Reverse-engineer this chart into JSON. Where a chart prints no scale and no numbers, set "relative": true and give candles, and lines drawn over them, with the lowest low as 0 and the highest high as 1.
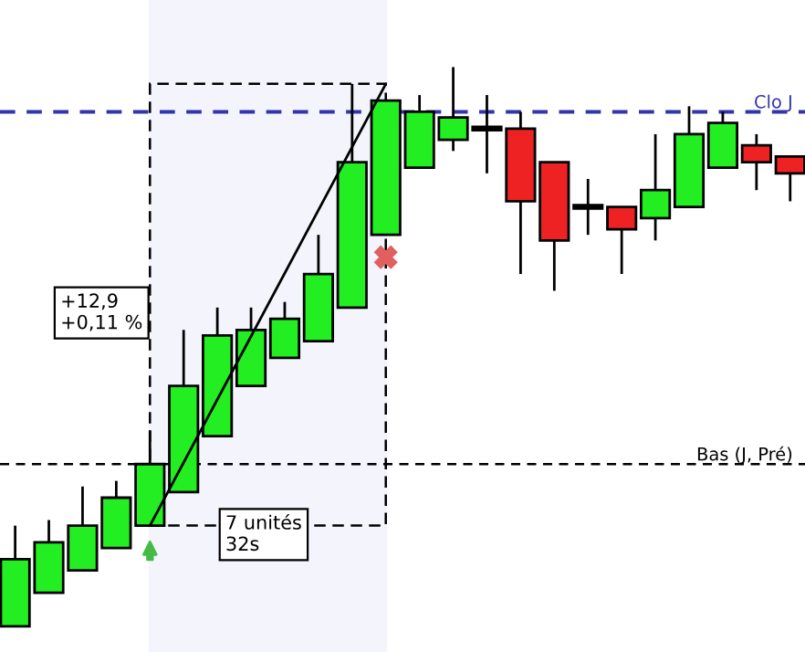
{
  "chart_data": {
    "type": "candlestick",
    "relative": true,
    "categories": [
      null,
      null,
      null,
      null,
      null,
      null,
      null,
      null,
      null,
      null,
      null,
      null,
      null,
      null,
      null,
      null,
      null,
      null,
      null,
      null,
      null,
      null,
      null,
      null
    ],
    "ohlc": [
      [
        0,
        0.18,
        0,
        0.12
      ],
      [
        0.06,
        0.19,
        0.06,
        0.15
      ],
      [
        0.1,
        0.25,
        0.1,
        0.18
      ],
      [
        0.14,
        0.26,
        0.14,
        0.23
      ],
      [
        0.18,
        0.35,
        0.18,
        0.29
      ],
      [
        0.24,
        0.53,
        0.24,
        0.43
      ],
      [
        0.34,
        0.57,
        0.34,
        0.52
      ],
      [
        0.43,
        0.57,
        0.43,
        0.53
      ],
      [
        0.48,
        0.58,
        0.48,
        0.55
      ],
      [
        0.51,
        0.7,
        0.51,
        0.63
      ],
      [
        0.57,
        0.97,
        0.57,
        0.83
      ],
      [
        0.7,
        0.94,
        0.7,
        0.94
      ],
      [
        0.82,
        0.95,
        0.82,
        0.92
      ],
      [
        0.87,
        1.0,
        0.85,
        0.91
      ],
      [
        0.89,
        0.95,
        0.81,
        0.89
      ],
      [
        0.89,
        0.92,
        0.63,
        0.76
      ],
      [
        0.83,
        0.83,
        0.6,
        0.69
      ],
      [
        0.75,
        0.8,
        0.7,
        0.75
      ],
      [
        0.75,
        0.75,
        0.63,
        0.71
      ],
      [
        0.73,
        0.88,
        0.69,
        0.78
      ],
      [
        0.75,
        0.93,
        0.75,
        0.88
      ],
      [
        0.82,
        0.92,
        0.82,
        0.9
      ],
      [
        0.86,
        0.88,
        0.78,
        0.83
      ],
      [
        0.84,
        0.84,
        0.76,
        0.81
      ]
    ],
    "colors": [
      "#22ee22",
      "#22ee22",
      "#22ee22",
      "#22ee22",
      "#22ee22",
      "#22ee22",
      "#22ee22",
      "#22ee22",
      "#22ee22",
      "#22ee22",
      "#22ee22",
      "#22ee22",
      "#22ee22",
      "#22ee22",
      "#000000",
      "#ee2222",
      "#ee2222",
      "#000000",
      "#ee2222",
      "#22ee22",
      "#22ee22",
      "#22ee22",
      "#ee2222",
      "#ee2222"
    ],
    "ref_lines": [
      {
        "axis": "y",
        "value": 0.92,
        "label": "Clo J",
        "color": "#3333aa",
        "line_style": "dashed"
      },
      {
        "axis": "y",
        "value": 0.29,
        "label": "Bas (J, Pré)",
        "color": "#000000",
        "line_style": "dashed"
      }
    ],
    "annotations": [
      "+12,9\n+0,11 %",
      "7 unités\n32s"
    ]
  }
}
